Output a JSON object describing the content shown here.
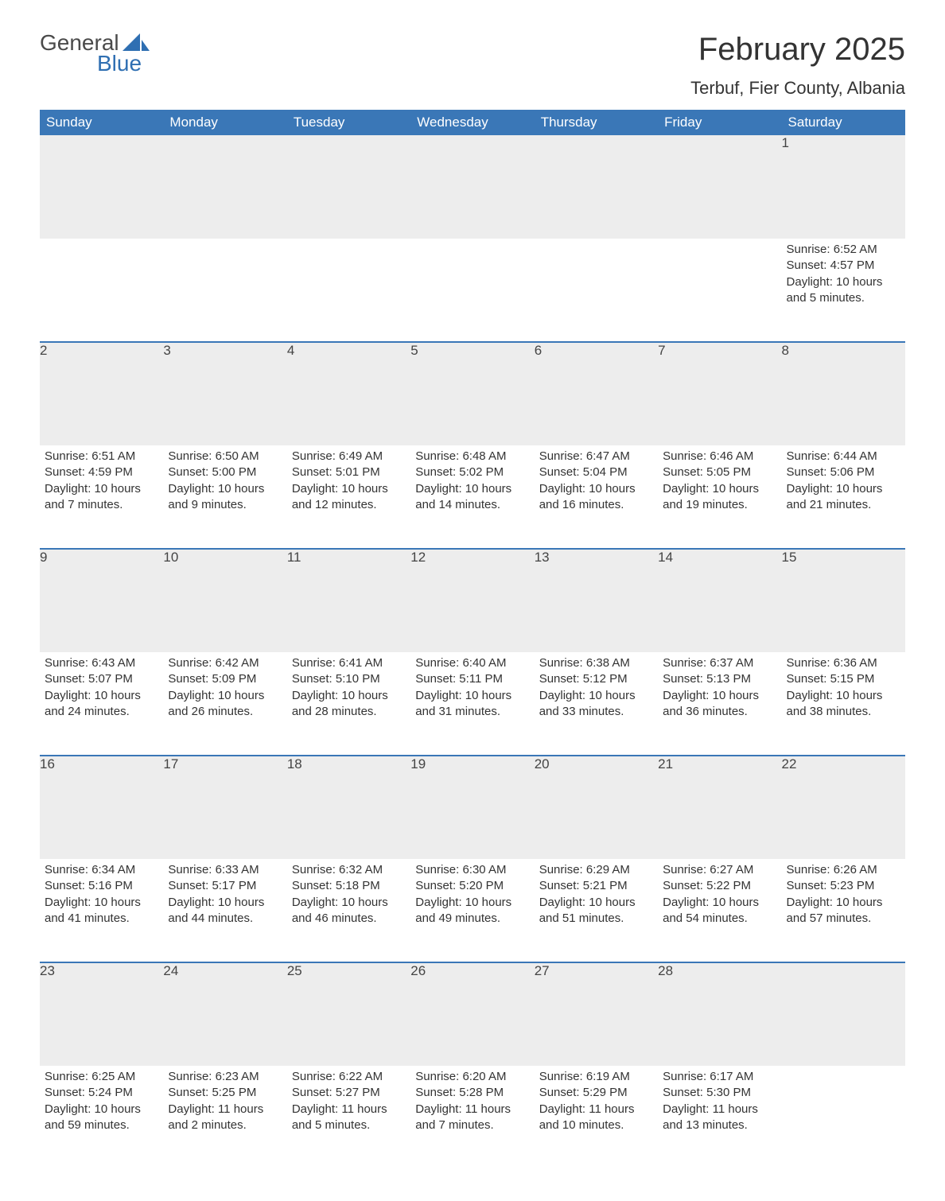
{
  "logo": {
    "word1": "General",
    "word2": "Blue"
  },
  "title": "February 2025",
  "subtitle": "Terbuf, Fier County, Albania",
  "colors": {
    "header_bg": "#3a77b7",
    "header_text": "#ffffff",
    "daynum_bg": "#ededed",
    "row_border": "#3a77b7",
    "body_text": "#333333",
    "logo_gray": "#4a4a4a",
    "logo_blue": "#2f6fb2",
    "page_bg": "#ffffff"
  },
  "weekdays": [
    "Sunday",
    "Monday",
    "Tuesday",
    "Wednesday",
    "Thursday",
    "Friday",
    "Saturday"
  ],
  "weeks": [
    [
      null,
      null,
      null,
      null,
      null,
      null,
      {
        "n": "1",
        "sunrise": "6:52 AM",
        "sunset": "4:57 PM",
        "daylight": "10 hours and 5 minutes."
      }
    ],
    [
      {
        "n": "2",
        "sunrise": "6:51 AM",
        "sunset": "4:59 PM",
        "daylight": "10 hours and 7 minutes."
      },
      {
        "n": "3",
        "sunrise": "6:50 AM",
        "sunset": "5:00 PM",
        "daylight": "10 hours and 9 minutes."
      },
      {
        "n": "4",
        "sunrise": "6:49 AM",
        "sunset": "5:01 PM",
        "daylight": "10 hours and 12 minutes."
      },
      {
        "n": "5",
        "sunrise": "6:48 AM",
        "sunset": "5:02 PM",
        "daylight": "10 hours and 14 minutes."
      },
      {
        "n": "6",
        "sunrise": "6:47 AM",
        "sunset": "5:04 PM",
        "daylight": "10 hours and 16 minutes."
      },
      {
        "n": "7",
        "sunrise": "6:46 AM",
        "sunset": "5:05 PM",
        "daylight": "10 hours and 19 minutes."
      },
      {
        "n": "8",
        "sunrise": "6:44 AM",
        "sunset": "5:06 PM",
        "daylight": "10 hours and 21 minutes."
      }
    ],
    [
      {
        "n": "9",
        "sunrise": "6:43 AM",
        "sunset": "5:07 PM",
        "daylight": "10 hours and 24 minutes."
      },
      {
        "n": "10",
        "sunrise": "6:42 AM",
        "sunset": "5:09 PM",
        "daylight": "10 hours and 26 minutes."
      },
      {
        "n": "11",
        "sunrise": "6:41 AM",
        "sunset": "5:10 PM",
        "daylight": "10 hours and 28 minutes."
      },
      {
        "n": "12",
        "sunrise": "6:40 AM",
        "sunset": "5:11 PM",
        "daylight": "10 hours and 31 minutes."
      },
      {
        "n": "13",
        "sunrise": "6:38 AM",
        "sunset": "5:12 PM",
        "daylight": "10 hours and 33 minutes."
      },
      {
        "n": "14",
        "sunrise": "6:37 AM",
        "sunset": "5:13 PM",
        "daylight": "10 hours and 36 minutes."
      },
      {
        "n": "15",
        "sunrise": "6:36 AM",
        "sunset": "5:15 PM",
        "daylight": "10 hours and 38 minutes."
      }
    ],
    [
      {
        "n": "16",
        "sunrise": "6:34 AM",
        "sunset": "5:16 PM",
        "daylight": "10 hours and 41 minutes."
      },
      {
        "n": "17",
        "sunrise": "6:33 AM",
        "sunset": "5:17 PM",
        "daylight": "10 hours and 44 minutes."
      },
      {
        "n": "18",
        "sunrise": "6:32 AM",
        "sunset": "5:18 PM",
        "daylight": "10 hours and 46 minutes."
      },
      {
        "n": "19",
        "sunrise": "6:30 AM",
        "sunset": "5:20 PM",
        "daylight": "10 hours and 49 minutes."
      },
      {
        "n": "20",
        "sunrise": "6:29 AM",
        "sunset": "5:21 PM",
        "daylight": "10 hours and 51 minutes."
      },
      {
        "n": "21",
        "sunrise": "6:27 AM",
        "sunset": "5:22 PM",
        "daylight": "10 hours and 54 minutes."
      },
      {
        "n": "22",
        "sunrise": "6:26 AM",
        "sunset": "5:23 PM",
        "daylight": "10 hours and 57 minutes."
      }
    ],
    [
      {
        "n": "23",
        "sunrise": "6:25 AM",
        "sunset": "5:24 PM",
        "daylight": "10 hours and 59 minutes."
      },
      {
        "n": "24",
        "sunrise": "6:23 AM",
        "sunset": "5:25 PM",
        "daylight": "11 hours and 2 minutes."
      },
      {
        "n": "25",
        "sunrise": "6:22 AM",
        "sunset": "5:27 PM",
        "daylight": "11 hours and 5 minutes."
      },
      {
        "n": "26",
        "sunrise": "6:20 AM",
        "sunset": "5:28 PM",
        "daylight": "11 hours and 7 minutes."
      },
      {
        "n": "27",
        "sunrise": "6:19 AM",
        "sunset": "5:29 PM",
        "daylight": "11 hours and 10 minutes."
      },
      {
        "n": "28",
        "sunrise": "6:17 AM",
        "sunset": "5:30 PM",
        "daylight": "11 hours and 13 minutes."
      },
      null
    ]
  ],
  "labels": {
    "sunrise": "Sunrise: ",
    "sunset": "Sunset: ",
    "daylight": "Daylight: "
  }
}
